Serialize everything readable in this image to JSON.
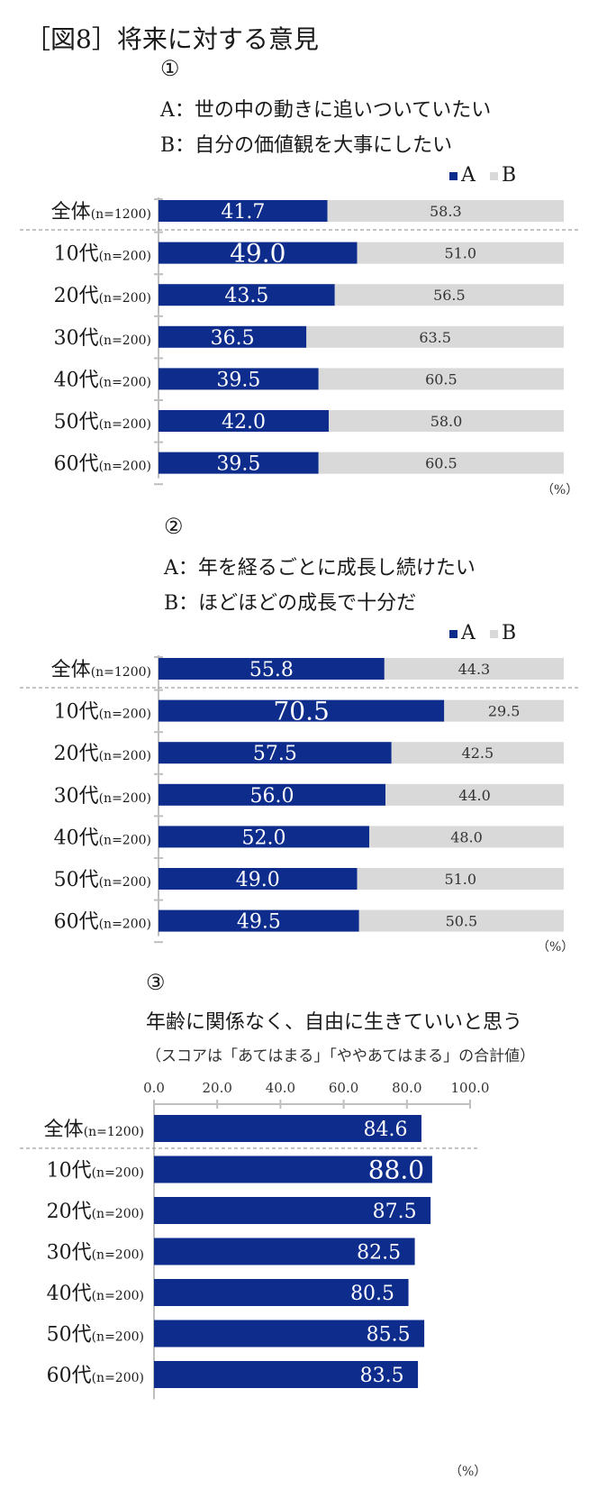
{
  "title": "［図8］将来に対する意見",
  "unit": "（%）",
  "colors": {
    "A": "#0d2c8c",
    "B": "#d9d9d9",
    "axis": "#bfbfbf"
  },
  "chart_data": [
    {
      "type": "bar",
      "stacked": true,
      "orientation": "horizontal",
      "number": "①",
      "lines": [
        "A：世の中の動きに追いついていたい",
        "B：自分の価値観を大事にしたい"
      ],
      "legend": [
        "A",
        "B"
      ],
      "legend_position": "top-right",
      "categories": [
        {
          "label": "全体",
          "n": "(n=1200)"
        },
        {
          "label": "10代",
          "n": "(n=200)"
        },
        {
          "label": "20代",
          "n": "(n=200)"
        },
        {
          "label": "30代",
          "n": "(n=200)"
        },
        {
          "label": "40代",
          "n": "(n=200)"
        },
        {
          "label": "50代",
          "n": "(n=200)"
        },
        {
          "label": "60代",
          "n": "(n=200)"
        }
      ],
      "series": [
        {
          "name": "A",
          "values": [
            41.7,
            49.0,
            43.5,
            36.5,
            39.5,
            42.0,
            39.5
          ]
        },
        {
          "name": "B",
          "values": [
            58.3,
            51.0,
            56.5,
            63.5,
            60.5,
            58.0,
            60.5
          ]
        }
      ],
      "xlim": [
        0,
        100
      ]
    },
    {
      "type": "bar",
      "stacked": true,
      "orientation": "horizontal",
      "number": "②",
      "lines": [
        "A：年を経るごとに成長し続けたい",
        "B：ほどほどの成長で十分だ"
      ],
      "legend": [
        "A",
        "B"
      ],
      "legend_position": "top-right",
      "categories": [
        {
          "label": "全体",
          "n": "(n=1200)"
        },
        {
          "label": "10代",
          "n": "(n=200)"
        },
        {
          "label": "20代",
          "n": "(n=200)"
        },
        {
          "label": "30代",
          "n": "(n=200)"
        },
        {
          "label": "40代",
          "n": "(n=200)"
        },
        {
          "label": "50代",
          "n": "(n=200)"
        },
        {
          "label": "60代",
          "n": "(n=200)"
        }
      ],
      "series": [
        {
          "name": "A",
          "values": [
            55.8,
            70.5,
            57.5,
            56.0,
            52.0,
            49.0,
            49.5
          ]
        },
        {
          "name": "B",
          "values": [
            44.3,
            29.5,
            42.5,
            44.0,
            48.0,
            51.0,
            50.5
          ]
        }
      ],
      "xlim": [
        0,
        100
      ]
    },
    {
      "type": "bar",
      "orientation": "horizontal",
      "number": "③",
      "lines": [
        "年齢に関係なく、自由に生きていいと思う"
      ],
      "subtitle": "（スコアは「あてはまる」「ややあてはまる」の合計値）",
      "categories": [
        {
          "label": "全体",
          "n": "(n=1200)"
        },
        {
          "label": "10代",
          "n": "(n=200)"
        },
        {
          "label": "20代",
          "n": "(n=200)"
        },
        {
          "label": "30代",
          "n": "(n=200)"
        },
        {
          "label": "40代",
          "n": "(n=200)"
        },
        {
          "label": "50代",
          "n": "(n=200)"
        },
        {
          "label": "60代",
          "n": "(n=200)"
        }
      ],
      "values": [
        84.6,
        88.0,
        87.5,
        82.5,
        80.5,
        85.5,
        83.5
      ],
      "xticks": [
        "0.0",
        "20.0",
        "40.0",
        "60.0",
        "80.0",
        "100.0"
      ],
      "xlim": [
        0,
        100
      ]
    }
  ]
}
